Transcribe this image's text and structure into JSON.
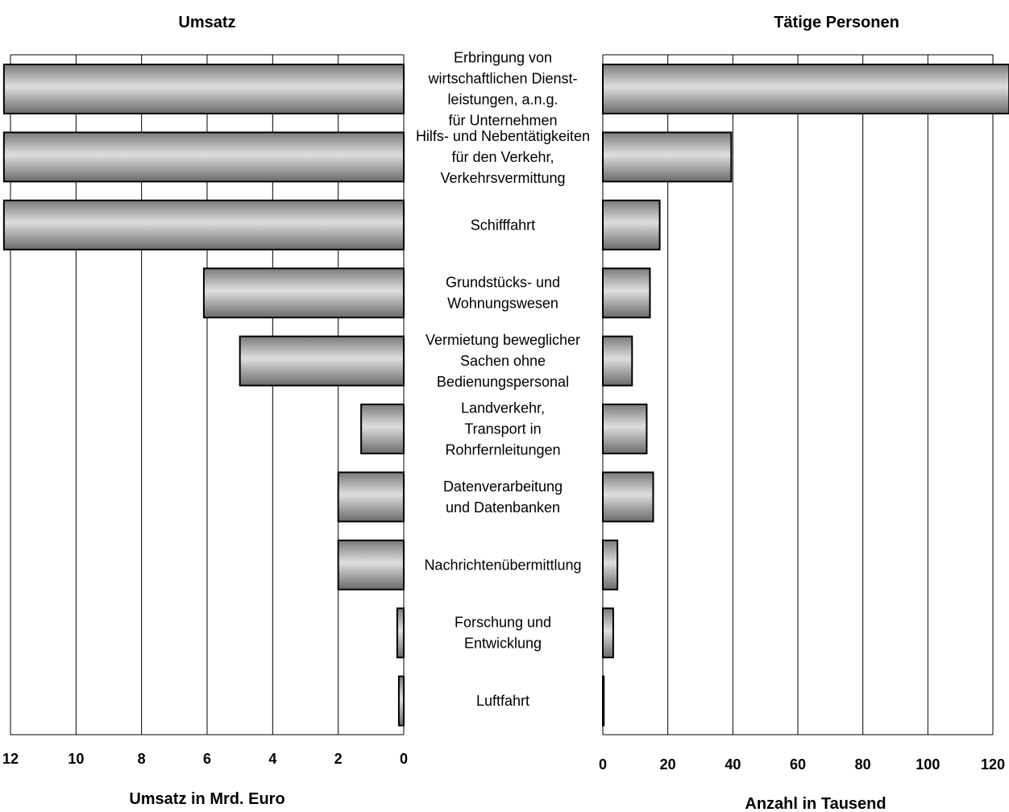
{
  "chart_data": {
    "type": "bar",
    "orientation": "horizontal",
    "layout": "back-to-back",
    "categories": [
      [
        "Erbringung von",
        "wirtschaftlichen Dienst-",
        "leistungen, a.n.g.",
        "für Unternehmen"
      ],
      [
        "Hilfs- und Nebentätigkeiten",
        "für den Verkehr,",
        "Verkehrsvermittung"
      ],
      [
        "Schifffahrt"
      ],
      [
        "Grundstücks- und",
        "Wohnungswesen"
      ],
      [
        "Vermietung beweglicher",
        "Sachen ohne",
        "Bedienungspersonal"
      ],
      [
        "Landverkehr,",
        "Transport in",
        "Rohrfernleitungen"
      ],
      [
        "Datenverarbeitung",
        "und Datenbanken"
      ],
      [
        "Nachrichtenübermittlung"
      ],
      [
        "Forschung und",
        "Entwicklung"
      ],
      [
        "Luftfahrt"
      ]
    ],
    "left": {
      "title": "Umsatz",
      "xlabel": "Umsatz in Mrd. Euro",
      "xlim": [
        0,
        12
      ],
      "reversed": true,
      "ticks": [
        12,
        10,
        8,
        6,
        4,
        2,
        0
      ],
      "values": [
        12.2,
        12.2,
        12.2,
        6.1,
        5.0,
        1.3,
        2.0,
        2.0,
        0.2,
        0.15
      ]
    },
    "right": {
      "title": "Tätige Personen",
      "xlabel": "Anzahl in Tausend",
      "xlim": [
        0,
        120
      ],
      "ticks": [
        0,
        20,
        40,
        60,
        80,
        100,
        120
      ],
      "values": [
        125,
        39.5,
        17.5,
        14.5,
        9.0,
        13.5,
        15.5,
        4.5,
        3.2,
        0.3
      ]
    },
    "grid": true,
    "colors": {
      "bar_dark": "#6e6e6e",
      "bar_light": "#dcdcdc",
      "stroke": "#000000",
      "grid": "#000000"
    }
  }
}
